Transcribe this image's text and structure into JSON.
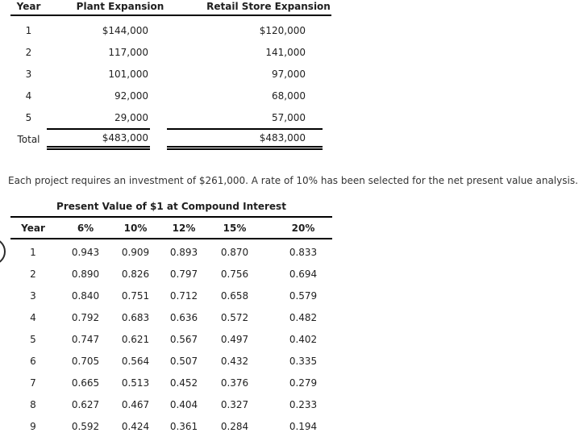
{
  "cash_flow_table": {
    "headers": [
      "Year",
      "Plant Expansion",
      "Retail Store Expansion"
    ],
    "rows": [
      {
        "year": "1",
        "plant": "$144,000",
        "retail": "$120,000"
      },
      {
        "year": "2",
        "plant": "117,000",
        "retail": "141,000"
      },
      {
        "year": "3",
        "plant": "101,000",
        "retail": "97,000"
      },
      {
        "year": "4",
        "plant": "92,000",
        "retail": "68,000"
      },
      {
        "year": "5",
        "plant": "29,000",
        "retail": "57,000"
      }
    ],
    "total": {
      "label": "Total",
      "plant": "$483,000",
      "retail": "$483,000"
    }
  },
  "paragraph": "Each project requires an investment of $261,000. A rate of 10% has been selected for the net present value analysis.",
  "pv_table": {
    "title": "Present Value of $1 at Compound Interest",
    "headers": [
      "Year",
      "6%",
      "10%",
      "12%",
      "15%",
      "20%"
    ],
    "rows": [
      [
        "1",
        "0.943",
        "0.909",
        "0.893",
        "0.870",
        "0.833"
      ],
      [
        "2",
        "0.890",
        "0.826",
        "0.797",
        "0.756",
        "0.694"
      ],
      [
        "3",
        "0.840",
        "0.751",
        "0.712",
        "0.658",
        "0.579"
      ],
      [
        "4",
        "0.792",
        "0.683",
        "0.636",
        "0.572",
        "0.482"
      ],
      [
        "5",
        "0.747",
        "0.621",
        "0.567",
        "0.497",
        "0.402"
      ],
      [
        "6",
        "0.705",
        "0.564",
        "0.507",
        "0.432",
        "0.335"
      ],
      [
        "7",
        "0.665",
        "0.513",
        "0.452",
        "0.376",
        "0.279"
      ],
      [
        "8",
        "0.627",
        "0.467",
        "0.404",
        "0.327",
        "0.233"
      ],
      [
        "9",
        "0.592",
        "0.424",
        "0.361",
        "0.284",
        "0.194"
      ]
    ]
  }
}
